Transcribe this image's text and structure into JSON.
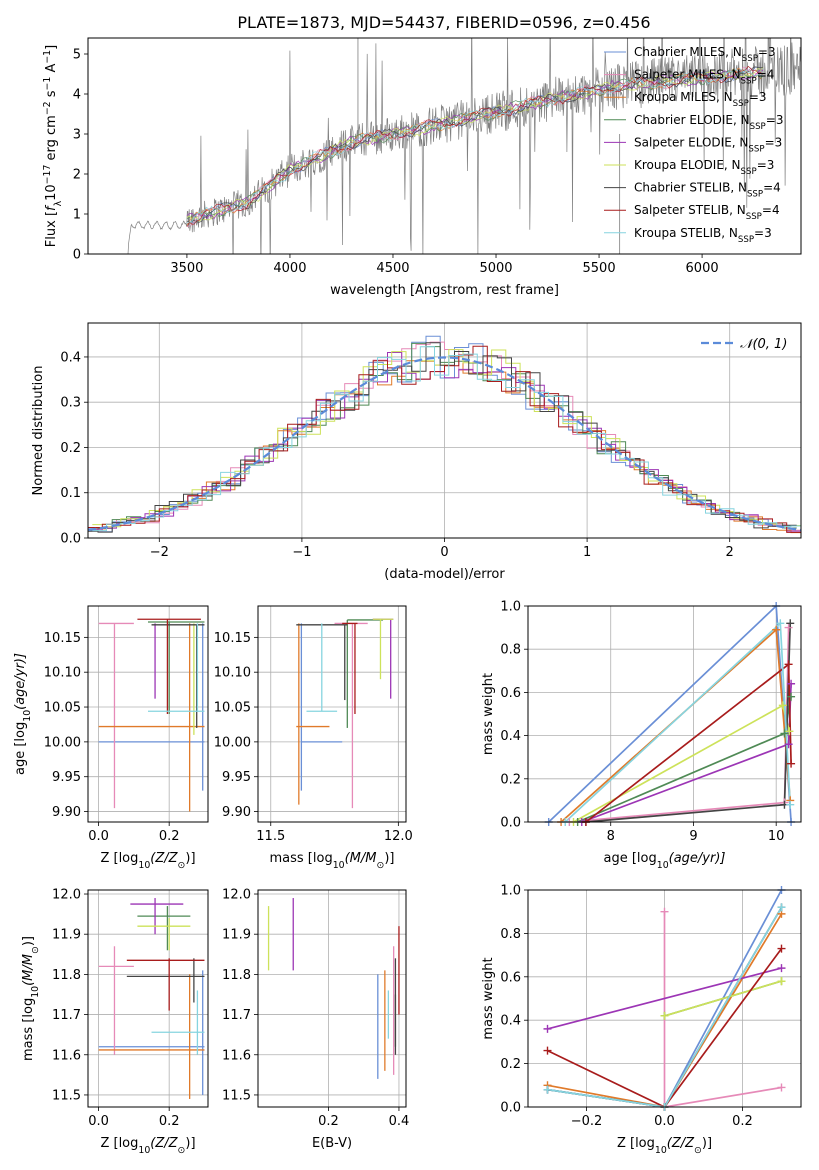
{
  "figure_title": "PLATE=1873, MJD=54437, FIBERID=0596, z=0.456",
  "colors": {
    "Chabrier MILES": "#6a8fd6",
    "Salpeter MILES": "#e68ab8",
    "Kroupa MILES": "#e07a2a",
    "Chabrier ELODIE": "#4f8a55",
    "Salpeter ELODIE": "#9c35b5",
    "Kroupa ELODIE": "#cde25a",
    "Chabrier STELIB": "#444444",
    "Salpeter STELIB": "#a81c1c",
    "Kroupa STELIB": "#86d4df",
    "data": "#808080"
  },
  "chart_data": [
    {
      "id": "spectrum",
      "type": "line",
      "xlabel": "wavelength [Angstrom, rest frame]",
      "ylabel_parts": [
        "Flux [",
        "f",
        "λ",
        "10",
        "−17",
        " erg cm",
        "−2",
        " s",
        "−1",
        " A",
        "−1",
        "]"
      ],
      "xlim": [
        3020,
        6480
      ],
      "ylim": [
        0,
        5.4
      ],
      "xticks": [
        3500,
        4000,
        4500,
        5000,
        5500,
        6000
      ],
      "yticks": [
        0,
        1,
        2,
        3,
        4,
        5
      ],
      "grid": false,
      "legend_position": "upper-right",
      "legend": [
        {
          "name": "Chabrier MILES",
          "label": "Chabrier MILES, N",
          "sub": "SSP",
          "suffix": "=3"
        },
        {
          "name": "Salpeter MILES",
          "label": "Salpeter MILES, N",
          "sub": "SSP",
          "suffix": "=4"
        },
        {
          "name": "Kroupa MILES",
          "label": "Kroupa MILES, N",
          "sub": "SSP",
          "suffix": "=3"
        },
        {
          "name": "Chabrier ELODIE",
          "label": "Chabrier ELODIE, N",
          "sub": "SSP",
          "suffix": "=3"
        },
        {
          "name": "Salpeter ELODIE",
          "label": "Salpeter ELODIE, N",
          "sub": "SSP",
          "suffix": "=3"
        },
        {
          "name": "Kroupa ELODIE",
          "label": "Kroupa ELODIE, N",
          "sub": "SSP",
          "suffix": "=3"
        },
        {
          "name": "Chabrier STELIB",
          "label": "Chabrier STELIB, N",
          "sub": "SSP",
          "suffix": "=4"
        },
        {
          "name": "Salpeter STELIB",
          "label": "Salpeter STELIB, N",
          "sub": "SSP",
          "suffix": "=4"
        },
        {
          "name": "Kroupa STELIB",
          "label": "Kroupa STELIB, N",
          "sub": "SSP",
          "suffix": "=3"
        }
      ],
      "data_trend": {
        "x": [
          3210,
          3230,
          3500,
          3800,
          4000,
          4300,
          4600,
          5000,
          5300,
          5600,
          6000,
          6400
        ],
        "y": [
          0,
          0.75,
          0.85,
          1.3,
          2.1,
          2.8,
          3.1,
          3.55,
          3.9,
          4.2,
          4.4,
          4.6
        ]
      }
    },
    {
      "id": "residuals",
      "type": "histogram",
      "xlabel": "(data-model)/error",
      "ylabel": "Normed distribution",
      "xlim": [
        -2.5,
        2.5
      ],
      "ylim": [
        0,
        0.475
      ],
      "xticks": [
        -2,
        -1,
        0,
        1,
        2
      ],
      "yticks": [
        0.0,
        0.1,
        0.2,
        0.3,
        0.4
      ],
      "grid": true,
      "legend_position": "upper-right",
      "legend": [
        {
          "label": "𝒩(0, 1)",
          "style": "dashed",
          "color": "#5b8bd9"
        }
      ],
      "bin_width": 0.1,
      "series_names": [
        "Chabrier MILES",
        "Salpeter MILES",
        "Kroupa MILES",
        "Chabrier ELODIE",
        "Salpeter ELODIE",
        "Kroupa ELODIE",
        "Chabrier STELIB",
        "Salpeter STELIB",
        "Kroupa STELIB"
      ]
    },
    {
      "id": "age-vs-Z",
      "type": "errorbar",
      "xlabel_parts": [
        "Z [log",
        "10",
        "(Z/Z",
        "⊙",
        ")]"
      ],
      "ylabel_parts": [
        "age  [log",
        "10",
        "(age/yr)]"
      ],
      "xlim": [
        -0.03,
        0.31
      ],
      "ylim": [
        9.885,
        10.195
      ],
      "xticks": [
        0.0,
        0.2
      ],
      "yticks": [
        9.9,
        9.95,
        10.0,
        10.05,
        10.1,
        10.15
      ],
      "grid": true,
      "points": [
        {
          "name": "Chabrier MILES",
          "x": 0.1,
          "xerr": [
            0.1,
            0.2
          ],
          "y": 10.0,
          "yerr": [
            0,
            0
          ],
          "vx": 0.295,
          "vy": [
            9.93,
            10.17
          ]
        },
        {
          "name": "Salpeter MILES",
          "x": 0.05,
          "xerr": [
            0.05,
            0.05
          ],
          "y": 10.17,
          "yerr": [
            0,
            0
          ],
          "vx": 0.045,
          "vy": [
            9.905,
            10.17
          ]
        },
        {
          "name": "Kroupa MILES",
          "x": 0.15,
          "xerr": [
            0.15,
            0.15
          ],
          "y": 10.022,
          "yerr": [
            0,
            0
          ],
          "vx": 0.258,
          "vy": [
            9.9,
            10.17
          ]
        },
        {
          "name": "Chabrier ELODIE",
          "x": 0.22,
          "xerr": [
            0.08,
            0.08
          ],
          "y": 10.172,
          "yerr": [
            0,
            0
          ],
          "vx": 0.2,
          "vy": [
            10.04,
            10.172
          ]
        },
        {
          "name": "Salpeter ELODIE",
          "x": 0.16,
          "xerr": [
            0,
            0
          ],
          "y": 10.17,
          "yerr": [
            0,
            0
          ],
          "vx": 0.16,
          "vy": [
            10.062,
            10.17
          ]
        },
        {
          "name": "Kroupa ELODIE",
          "x": 0.26,
          "xerr": [
            0,
            0
          ],
          "y": 10.17,
          "yerr": [
            0,
            0
          ],
          "vx": 0.27,
          "vy": [
            10.01,
            10.17
          ]
        },
        {
          "name": "Chabrier STELIB",
          "x": 0.23,
          "xerr": [
            0.08,
            0.07
          ],
          "y": 10.168,
          "yerr": [
            0,
            0
          ],
          "vx": 0.278,
          "vy": [
            10.02,
            10.168
          ]
        },
        {
          "name": "Salpeter STELIB",
          "x": 0.2,
          "xerr": [
            0.09,
            0.09
          ],
          "y": 10.176,
          "yerr": [
            0,
            0
          ],
          "vx": 0.195,
          "vy": [
            10.04,
            10.176
          ]
        },
        {
          "name": "Kroupa STELIB",
          "x": 0.22,
          "xerr": [
            0.08,
            0.08
          ],
          "y": 10.044,
          "yerr": [
            0,
            0
          ],
          "vx": 0.28,
          "vy": [
            10.044,
            10.17
          ]
        }
      ]
    },
    {
      "id": "age-vs-mass",
      "type": "errorbar",
      "xlabel_parts": [
        "mass [log",
        "10",
        "(M/M",
        "⊙",
        ")]"
      ],
      "ylabel_parts": [],
      "xlim": [
        11.45,
        12.03
      ],
      "ylim": [
        9.885,
        10.195
      ],
      "xticks": [
        11.5,
        12.0
      ],
      "yticks": [
        9.9,
        9.95,
        10.0,
        10.05,
        10.1,
        10.15
      ],
      "grid": true,
      "points": [
        {
          "name": "Chabrier MILES",
          "h": [
            11.62,
            11.78
          ],
          "hy": 10.0,
          "vx": 11.62,
          "vy": [
            9.93,
            10.17
          ]
        },
        {
          "name": "Salpeter MILES",
          "h": [
            11.75,
            11.88
          ],
          "hy": 10.17,
          "vx": 11.82,
          "vy": [
            9.905,
            10.17
          ]
        },
        {
          "name": "Kroupa MILES",
          "h": [
            11.6,
            11.73
          ],
          "hy": 10.022,
          "vx": 11.61,
          "vy": [
            9.91,
            10.17
          ]
        },
        {
          "name": "Chabrier ELODIE",
          "h": [
            11.8,
            11.94
          ],
          "hy": 10.175,
          "vx": 11.8,
          "vy": [
            10.02,
            10.175
          ]
        },
        {
          "name": "Salpeter ELODIE",
          "h": [
            11.9,
            11.98
          ],
          "hy": 10.176,
          "vx": 11.97,
          "vy": [
            10.062,
            10.176
          ]
        },
        {
          "name": "Kroupa ELODIE",
          "h": [
            11.9,
            11.98
          ],
          "hy": 10.176,
          "vx": 11.93,
          "vy": [
            10.09,
            10.176
          ]
        },
        {
          "name": "Chabrier STELIB",
          "h": [
            11.6,
            11.8
          ],
          "hy": 10.168,
          "vx": 11.79,
          "vy": [
            10.06,
            10.168
          ]
        },
        {
          "name": "Salpeter STELIB",
          "h": [
            11.78,
            11.84
          ],
          "hy": 10.17,
          "vx": 11.83,
          "vy": [
            10.04,
            10.17
          ]
        },
        {
          "name": "Kroupa STELIB",
          "h": [
            11.64,
            11.76
          ],
          "hy": 10.044,
          "vx": 11.7,
          "vy": [
            10.044,
            10.17
          ]
        }
      ]
    },
    {
      "id": "weight-vs-age",
      "type": "line",
      "xlabel_parts": [
        "age  [log",
        "10",
        "(age/yr)]"
      ],
      "ylabel": "mass weight",
      "xlim": [
        7.0,
        10.3
      ],
      "ylim": [
        0.0,
        1.0
      ],
      "xticks": [
        8,
        9,
        10
      ],
      "yticks": [
        0.0,
        0.2,
        0.4,
        0.6,
        0.8,
        1.0
      ],
      "grid": true,
      "series": [
        {
          "name": "Chabrier MILES",
          "x": [
            7.25,
            10.0,
            10.18
          ],
          "y": [
            0.0,
            1.0,
            0.0
          ]
        },
        {
          "name": "Salpeter MILES",
          "x": [
            7.5,
            10.1,
            10.15
          ],
          "y": [
            0.0,
            0.09,
            0.9
          ]
        },
        {
          "name": "Kroupa MILES",
          "x": [
            7.4,
            10.0,
            10.17
          ],
          "y": [
            0.0,
            0.89,
            0.1
          ]
        },
        {
          "name": "Chabrier ELODIE",
          "x": [
            7.6,
            10.1,
            10.18
          ],
          "y": [
            0.0,
            0.41,
            0.58
          ]
        },
        {
          "name": "Salpeter ELODIE",
          "x": [
            7.65,
            10.15,
            10.18
          ],
          "y": [
            0.0,
            0.36,
            0.64
          ]
        },
        {
          "name": "Kroupa ELODIE",
          "x": [
            7.55,
            10.08,
            10.16
          ],
          "y": [
            0.0,
            0.54,
            0.42
          ]
        },
        {
          "name": "Chabrier STELIB",
          "x": [
            7.7,
            10.1,
            10.17
          ],
          "y": [
            0.0,
            0.08,
            0.92
          ]
        },
        {
          "name": "Salpeter STELIB",
          "x": [
            7.7,
            10.15,
            10.18
          ],
          "y": [
            0.0,
            0.73,
            0.27
          ]
        },
        {
          "name": "Kroupa STELIB",
          "x": [
            7.45,
            10.05,
            10.17
          ],
          "y": [
            0.0,
            0.92,
            0.08
          ]
        }
      ]
    },
    {
      "id": "mass-vs-Z",
      "type": "errorbar",
      "xlabel_parts": [
        "Z [log",
        "10",
        "(Z/Z",
        "⊙",
        ")]"
      ],
      "ylabel_parts": [
        "mass [log",
        "10",
        "(M/M",
        "⊙",
        ")]"
      ],
      "xlim": [
        -0.03,
        0.31
      ],
      "ylim": [
        11.47,
        12.01
      ],
      "xticks": [
        0.0,
        0.2
      ],
      "yticks": [
        11.5,
        11.6,
        11.7,
        11.8,
        11.9,
        12.0
      ],
      "grid": true,
      "points": [
        {
          "name": "Chabrier MILES",
          "h": [
            0.0,
            0.3
          ],
          "hy": 11.62,
          "vx": 0.295,
          "vy": [
            11.5,
            11.81
          ]
        },
        {
          "name": "Salpeter MILES",
          "h": [
            0.0,
            0.1
          ],
          "hy": 11.82,
          "vx": 0.045,
          "vy": [
            11.6,
            11.87
          ]
        },
        {
          "name": "Kroupa MILES",
          "h": [
            0.0,
            0.3
          ],
          "hy": 11.612,
          "vx": 0.258,
          "vy": [
            11.49,
            11.8
          ]
        },
        {
          "name": "Chabrier ELODIE",
          "h": [
            0.11,
            0.26
          ],
          "hy": 11.945,
          "vx": 0.195,
          "vy": [
            11.86,
            11.97
          ]
        },
        {
          "name": "Salpeter ELODIE",
          "h": [
            0.09,
            0.24
          ],
          "hy": 11.975,
          "vx": 0.16,
          "vy": [
            11.9,
            11.99
          ]
        },
        {
          "name": "Kroupa ELODIE",
          "h": [
            0.11,
            0.26
          ],
          "hy": 11.92,
          "vx": 0.2,
          "vy": [
            11.86,
            11.94
          ]
        },
        {
          "name": "Chabrier STELIB",
          "h": [
            0.08,
            0.3
          ],
          "hy": 11.795,
          "vx": 0.27,
          "vy": [
            11.73,
            11.84
          ]
        },
        {
          "name": "Salpeter STELIB",
          "h": [
            0.08,
            0.3
          ],
          "hy": 11.835,
          "vx": 0.2,
          "vy": [
            11.71,
            11.84
          ]
        },
        {
          "name": "Kroupa STELIB",
          "h": [
            0.15,
            0.3
          ],
          "hy": 11.656,
          "vx": 0.28,
          "vy": [
            11.6,
            11.76
          ]
        }
      ]
    },
    {
      "id": "mass-vs-EBV",
      "type": "errorbar",
      "xlabel": "E(B-V)",
      "ylabel_parts": [],
      "xlim": [
        0.0,
        0.42
      ],
      "ylim": [
        11.47,
        12.01
      ],
      "xticks": [
        0.2,
        0.4
      ],
      "yticks": [
        11.5,
        11.6,
        11.7,
        11.8,
        11.9,
        12.0
      ],
      "grid": true,
      "points": [
        {
          "name": "Kroupa ELODIE",
          "vx": 0.03,
          "vy": [
            11.81,
            11.97
          ]
        },
        {
          "name": "Salpeter ELODIE",
          "vx": 0.1,
          "vy": [
            11.81,
            11.99
          ]
        },
        {
          "name": "Chabrier MILES",
          "vx": 0.34,
          "vy": [
            11.54,
            11.8
          ]
        },
        {
          "name": "Kroupa MILES",
          "vx": 0.36,
          "vy": [
            11.56,
            11.81
          ]
        },
        {
          "name": "Kroupa STELIB",
          "vx": 0.37,
          "vy": [
            11.64,
            11.76
          ]
        },
        {
          "name": "Chabrier ELODIE",
          "vx": 0.39,
          "vy": [
            11.62,
            11.75
          ]
        },
        {
          "name": "Chabrier STELIB",
          "vx": 0.39,
          "vy": [
            11.6,
            11.84
          ]
        },
        {
          "name": "Salpeter STELIB",
          "vx": 0.4,
          "vy": [
            11.7,
            11.92
          ]
        },
        {
          "name": "Salpeter MILES",
          "vx": 0.385,
          "vy": [
            11.55,
            11.87
          ]
        }
      ]
    },
    {
      "id": "weight-vs-Z",
      "type": "line",
      "xlabel_parts": [
        "Z [log",
        "10",
        "(Z/Z",
        "⊙",
        ")]"
      ],
      "ylabel": "mass weight",
      "xlim": [
        -0.35,
        0.35
      ],
      "ylim": [
        0.0,
        1.0
      ],
      "xticks": [
        -0.2,
        0.0,
        0.2
      ],
      "yticks": [
        0.0,
        0.2,
        0.4,
        0.6,
        0.8,
        1.0
      ],
      "grid": true,
      "series": [
        {
          "name": "Chabrier MILES",
          "x": [
            -0.3,
            0.0,
            0.3
          ],
          "y": [
            0.08,
            0.0,
            1.0
          ]
        },
        {
          "name": "Salpeter MILES",
          "x": [
            0.0,
            0.0,
            0.3
          ],
          "y": [
            0.9,
            0.0,
            0.09
          ]
        },
        {
          "name": "Kroupa MILES",
          "x": [
            -0.3,
            0.0,
            0.3
          ],
          "y": [
            0.1,
            0.0,
            0.89
          ]
        },
        {
          "name": "Chabrier ELODIE",
          "x": [
            0.0,
            0.3
          ],
          "y": [
            0.42,
            0.58
          ]
        },
        {
          "name": "Salpeter ELODIE",
          "x": [
            -0.3,
            0.3
          ],
          "y": [
            0.36,
            0.64
          ]
        },
        {
          "name": "Kroupa ELODIE",
          "x": [
            0.0,
            0.3,
            0.3
          ],
          "y": [
            0.42,
            0.58,
            0.58
          ]
        },
        {
          "name": "Chabrier STELIB",
          "x": [
            -0.3,
            0.0,
            0.3
          ],
          "y": [
            0.08,
            0.0,
            0.92
          ]
        },
        {
          "name": "Salpeter STELIB",
          "x": [
            -0.3,
            0.0,
            0.3
          ],
          "y": [
            0.26,
            0.0,
            0.73
          ]
        },
        {
          "name": "Kroupa STELIB",
          "x": [
            -0.3,
            0.0,
            0.3
          ],
          "y": [
            0.08,
            0.0,
            0.92
          ]
        }
      ]
    }
  ]
}
